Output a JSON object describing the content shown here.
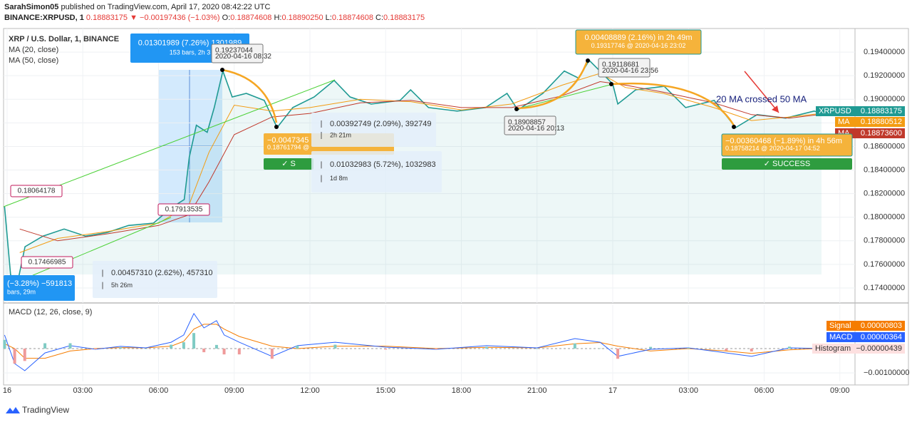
{
  "header": {
    "author": "SarahSimon05",
    "published": "published on TradingView.com, April 17, 2020 08:42:22 UTC",
    "symbol": "BINANCE:XRPUSD, 1",
    "last": "0.18883175",
    "change": "▼ −0.00197436 (−1.03%)",
    "ohlc": [
      {
        "label": "O:",
        "value": "0.18874608"
      },
      {
        "label": "H:",
        "value": "0.18890250"
      },
      {
        "label": "L:",
        "value": "0.18874608"
      },
      {
        "label": "C:",
        "value": "0.18883175"
      }
    ]
  },
  "chart_data": [
    {
      "type": "line",
      "title": "XRP / U.S. Dollar, 1, BINANCE",
      "xlim": [
        -0.14,
        33.6
      ],
      "xticks": [
        {
          "value": 0,
          "label": "16"
        },
        {
          "value": 3,
          "label": "03:00"
        },
        {
          "value": 6,
          "label": "06:00"
        },
        {
          "value": 9,
          "label": "09:00"
        },
        {
          "value": 12,
          "label": "12:00"
        },
        {
          "value": 15,
          "label": "15:00"
        },
        {
          "value": 18,
          "label": "18:00"
        },
        {
          "value": 21,
          "label": "21:00"
        },
        {
          "value": 24,
          "label": "17"
        },
        {
          "value": 27,
          "label": "03:00"
        },
        {
          "value": 30,
          "label": "06:00"
        },
        {
          "value": 33,
          "label": "09:00"
        }
      ],
      "ylim": [
        0.17273,
        0.196
      ],
      "yticks": [
        {
          "value": 0.174,
          "label": "0.17400000"
        },
        {
          "value": 0.176,
          "label": "0.17600000"
        },
        {
          "value": 0.178,
          "label": "0.17800000"
        },
        {
          "value": 0.18,
          "label": "0.18000000"
        },
        {
          "value": 0.182,
          "label": "0.18200000"
        },
        {
          "value": 0.184,
          "label": "0.18400000"
        },
        {
          "value": 0.186,
          "label": "0.18600000"
        },
        {
          "value": 0.188,
          "label": "0.18800000"
        },
        {
          "value": 0.19,
          "label": "0.19000000"
        },
        {
          "value": 0.192,
          "label": "0.19200000"
        },
        {
          "value": 0.194,
          "label": "0.19400000"
        }
      ],
      "grid": true,
      "series": [
        {
          "name": "XRPUSD",
          "tag": "XRPUSD",
          "last_label": "0.18883175",
          "color": "#1f9a93",
          "area": true,
          "x": [
            -0.1,
            0.14,
            0.42,
            0.71,
            1.42,
            2.26,
            3.11,
            3.96,
            4.81,
            5.8,
            6.51,
            7.02,
            7.22,
            7.5,
            7.93,
            8.21,
            8.55,
            8.92,
            9.48,
            10.19,
            10.7,
            11.32,
            12.17,
            12.96,
            13.59,
            14.43,
            15.57,
            15.99,
            16.7,
            17.83,
            18.96,
            19.81,
            20.24,
            21.23,
            22.08,
            22.64,
            23.07,
            23.49,
            24.0,
            24.2,
            24.91,
            26.04,
            26.89,
            28.02,
            28.87,
            29.72,
            30.85,
            31.98,
            32.27
          ],
          "values": [
            0.1809,
            0.1751,
            0.1745,
            0.1775,
            0.1784,
            0.179,
            0.1784,
            0.1787,
            0.1793,
            0.1795,
            0.1808,
            0.1815,
            0.1851,
            0.1878,
            0.1872,
            0.1893,
            0.1924,
            0.1902,
            0.1905,
            0.1899,
            0.1876,
            0.1893,
            0.1902,
            0.1916,
            0.1902,
            0.1896,
            0.1899,
            0.1908,
            0.1893,
            0.189,
            0.1893,
            0.1905,
            0.1891,
            0.1905,
            0.1924,
            0.1918,
            0.1933,
            0.1924,
            0.1913,
            0.1896,
            0.1908,
            0.1911,
            0.1893,
            0.1899,
            0.1876,
            0.1887,
            0.1884,
            0.189,
            0.18883175
          ]
        },
        {
          "name": "MA (20, close)",
          "tag": "MA",
          "last_label": "0.18880512",
          "color": "#f39c12",
          "x": [
            0.5,
            2,
            4,
            6,
            7.2,
            8,
            9,
            10.5,
            12,
            14,
            16,
            18,
            20,
            22,
            23.5,
            24.5,
            26,
            28,
            29.5,
            31,
            32.3
          ],
          "values": [
            0.177,
            0.1782,
            0.1788,
            0.1795,
            0.181,
            0.1855,
            0.1895,
            0.189,
            0.1893,
            0.19,
            0.1898,
            0.1891,
            0.1896,
            0.1912,
            0.1922,
            0.191,
            0.1905,
            0.1893,
            0.1882,
            0.1885,
            0.18880512
          ]
        },
        {
          "name": "MA (50, close)",
          "tag": "MA",
          "last_label": "0.18873600",
          "color": "#c0392b",
          "x": [
            0.5,
            2,
            4,
            6,
            7.2,
            8,
            9,
            10.5,
            12,
            14,
            16,
            18,
            20,
            22,
            23.5,
            24.5,
            26,
            28,
            29.5,
            31,
            32.3
          ],
          "values": [
            0.179,
            0.178,
            0.1786,
            0.1793,
            0.1802,
            0.183,
            0.187,
            0.1885,
            0.1888,
            0.1897,
            0.1899,
            0.1893,
            0.1893,
            0.1903,
            0.1915,
            0.1912,
            0.1906,
            0.1897,
            0.1887,
            0.1884,
            0.188736
          ]
        }
      ],
      "annotations": [
        {
          "lines": [
            "0.01301989 (7.26%) 1301989",
            "153 bars, 2h 3"
          ]
        },
        {
          "lines": [
            "0.19237044",
            "2020-04-16 08:32"
          ]
        },
        {
          "lines": [
            "0.00408889 (2.16%) in 2h 49m",
            "0.19317746 @ 2020-04-16  23:02"
          ]
        },
        {
          "lines": [
            "0.19118681",
            "2020-04-16 23:56"
          ]
        },
        {
          "lines": [
            "0.18908857",
            "2020-04-16 20:13"
          ]
        },
        {
          "lines": [
            "−0.0047345",
            "0.18761794 @"
          ]
        },
        {
          "lines": [
            "✓ S"
          ]
        },
        {
          "lines": [
            "0.00392749 (2.09%), 392749",
            "2h 21m"
          ]
        },
        {
          "lines": [
            "0.01032983 (5.72%), 1032983",
            "1d 8m"
          ]
        },
        {
          "lines": [
            "−0.00360468 (−1.89%) in 4h 56m",
            "0.18758214 @ 2020-04-17  04:52"
          ]
        },
        {
          "lines": [
            "✓ SUCCESS"
          ]
        },
        {
          "lines": [
            "20 MA crossed 50 MA"
          ]
        },
        {
          "lines": [
            "0.18064178"
          ]
        },
        {
          "lines": [
            "0.17466985"
          ]
        },
        {
          "lines": [
            "0.17913535"
          ]
        },
        {
          "lines": [
            "0.00457310 (2.62%), 457310",
            "5h 26m"
          ]
        },
        {
          "lines": [
            "(−3.28%) −591813",
            "bars, 29m"
          ]
        }
      ]
    },
    {
      "type": "line",
      "title": "MACD (12, 26, close, 9)",
      "xlim": [
        -0.14,
        33.6
      ],
      "ylim": [
        -0.00135,
        0.00179
      ],
      "yticks": [
        {
          "value": -0.001,
          "label": "−0.00100000"
        }
      ],
      "series": [
        {
          "name": "Signal",
          "tag": "Signal",
          "last_label": "0.00000803",
          "color": "#f57c00",
          "x": [
            -0.1,
            0.3,
            0.7,
            1.5,
            2.5,
            3.5,
            4.5,
            5.5,
            6.5,
            7.0,
            7.4,
            7.8,
            8.3,
            8.6,
            9.2,
            10.5,
            11.5,
            13,
            15,
            17,
            19,
            21,
            22.5,
            23.5,
            24.2,
            25.5,
            27,
            28.5,
            29.5,
            31,
            32.3
          ],
          "values": [
            0.0002,
            0.0,
            -0.0004,
            -0.0004,
            -0.0001,
            0.0,
            4e-05,
            3e-05,
            0.0001,
            0.0003,
            0.0008,
            0.001,
            0.001,
            0.0008,
            0.0005,
            0.0001,
            0.0,
            0.0001,
            0.0001,
            0.0,
            5e-05,
            3e-05,
            0.0002,
            0.00025,
            0.0001,
            -0.0001,
            0.0,
            -0.0001,
            -0.0002,
            -5e-05,
            8.03e-06
          ]
        },
        {
          "name": "MACD",
          "tag": "MACD",
          "last_label": "0.00000364",
          "color": "#2962ff",
          "x": [
            -0.1,
            0.3,
            0.7,
            1.5,
            2.5,
            3.5,
            4.5,
            5.5,
            6.5,
            7.0,
            7.4,
            7.8,
            8.3,
            8.6,
            9.2,
            10.5,
            11.5,
            13,
            15,
            17,
            19,
            21,
            22.5,
            23.5,
            24.2,
            25.5,
            27,
            28.5,
            29.5,
            31,
            32.3
          ],
          "values": [
            0.00056,
            -0.00062,
            -0.00091,
            -0.00018,
            0.00012,
            -3e-05,
            9e-05,
            3e-05,
            0.00026,
            0.00056,
            0.00144,
            0.00085,
            0.00115,
            0.00056,
            0.00026,
            -0.00032,
            0.00012,
            0.00026,
            6e-05,
            -3e-05,
            0.00012,
            3e-05,
            0.00041,
            0.00026,
            -0.00032,
            -3e-05,
            3e-05,
            -0.00018,
            -0.00032,
            3e-05,
            3.64e-06
          ]
        },
        {
          "name": "Histogram",
          "tag": "Histogram",
          "last_label": "−0.00000439",
          "color": "#ef9a9a",
          "bars": true,
          "x": [
            -0.1,
            0.3,
            0.7,
            1.5,
            2.5,
            3.5,
            4.5,
            5.5,
            6.5,
            7.0,
            7.4,
            7.8,
            8.3,
            8.6,
            9.2,
            10.5,
            11.5,
            13,
            15,
            17,
            19,
            21,
            22.5,
            23.5,
            24.2,
            25.5,
            27,
            28.5,
            29.5,
            31,
            32.3
          ],
          "values": [
            0.00036,
            -0.00062,
            -0.00051,
            0.00022,
            0.00022,
            -3e-05,
            5e-05,
            0.0,
            0.00016,
            0.00026,
            0.00064,
            -0.00015,
            0.00015,
            -0.00024,
            -0.00024,
            -0.00042,
            0.00012,
            0.00016,
            -4e-05,
            -3e-05,
            7e-05,
            0.0,
            0.00021,
            1e-05,
            -0.00042,
            7e-05,
            3e-05,
            -8e-05,
            -0.00012,
            8e-05,
            -4.39e-06
          ]
        }
      ]
    }
  ],
  "footer": {
    "brand": "TradingView"
  }
}
